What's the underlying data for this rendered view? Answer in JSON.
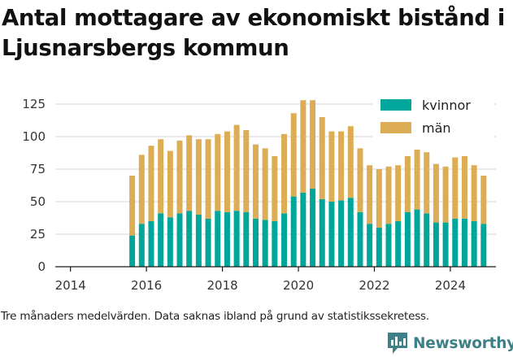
{
  "title": "Antal mottagare av ekonomiskt bistånd i Ljusnarsbergs kommun",
  "caption": "Tre månaders medelvärden. Data saknas ibland på grund av statistikssekretess.",
  "brand": {
    "name": "Newsworthy",
    "logo_icon": "newsworthy-logo-icon",
    "color": "#3d8088"
  },
  "colors": {
    "kvinnor": "#00a69a",
    "man": "#dcad55",
    "axis": "#1a1a1a",
    "grid": "#d4d4d4"
  },
  "chart_data": {
    "type": "bar",
    "stacked": true,
    "title": "Antal mottagare av ekonomiskt bistånd i Ljusnarsbergs kommun",
    "xlabel": "",
    "ylabel": "",
    "xlim": [
      2013.6,
      2025.2
    ],
    "ylim": [
      0,
      130
    ],
    "x_ticks": [
      2014,
      2016,
      2018,
      2020,
      2022,
      2024
    ],
    "y_ticks": [
      0,
      25,
      50,
      75,
      100,
      125
    ],
    "grid": "horizontal",
    "legend_position": "top-right",
    "x": [
      "2015-08",
      "2015-11",
      "2016-02",
      "2016-05",
      "2016-08",
      "2016-11",
      "2017-02",
      "2017-05",
      "2017-08",
      "2017-11",
      "2018-02",
      "2018-05",
      "2018-08",
      "2018-11",
      "2019-02",
      "2019-05",
      "2019-08",
      "2019-11",
      "2020-02",
      "2020-05",
      "2020-08",
      "2020-11",
      "2021-02",
      "2021-05",
      "2021-08",
      "2021-11",
      "2022-02",
      "2022-05",
      "2022-08",
      "2022-11",
      "2023-02",
      "2023-05",
      "2023-08",
      "2023-11",
      "2024-02",
      "2024-05",
      "2024-08",
      "2024-11"
    ],
    "series": [
      {
        "name": "kvinnor",
        "color": "#00a69a",
        "values": [
          24,
          33,
          35,
          41,
          38,
          41,
          43,
          40,
          37,
          43,
          42,
          43,
          42,
          37,
          36,
          35,
          41,
          54,
          57,
          60,
          52,
          50,
          51,
          53,
          42,
          33,
          30,
          33,
          35,
          42,
          44,
          41,
          34,
          34,
          37,
          37,
          35,
          33
        ]
      },
      {
        "name": "män",
        "color": "#dcad55",
        "values": [
          46,
          53,
          58,
          57,
          51,
          56,
          58,
          58,
          61,
          59,
          62,
          66,
          63,
          57,
          55,
          50,
          61,
          64,
          71,
          68,
          63,
          54,
          53,
          55,
          49,
          45,
          45,
          44,
          43,
          43,
          46,
          47,
          45,
          43,
          47,
          48,
          43,
          37
        ]
      }
    ]
  }
}
